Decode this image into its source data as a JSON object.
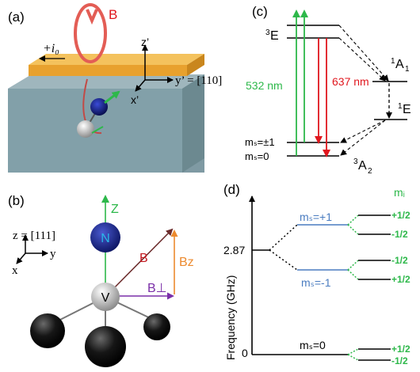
{
  "panel_a": {
    "label": "(a)",
    "field": "B",
    "current": "+i₀",
    "axis_z": "z’",
    "axis_x": "x’",
    "axis_y": "y’ = [110]"
  },
  "panel_b": {
    "label": "(b)",
    "axis_z_label": "Z",
    "atom_n": "N",
    "atom_v": "V",
    "field": "B",
    "field_z": "Bz",
    "field_perp": "B⊥",
    "frame_z": "z = [111]",
    "frame_y": "y",
    "frame_x": "x"
  },
  "panel_c": {
    "label": "(c)",
    "level_3E_sup": "3",
    "level_3E": "E",
    "level_1A1_sup": "1",
    "level_1A1": "A",
    "level_1A1_sub": "1",
    "level_1E_sup": "1",
    "level_1E": "E",
    "level_3A2_sup": "3",
    "level_3A2": "A",
    "level_3A2_sub": "2",
    "ms_pm1": "mₛ=±1",
    "ms_0": "mₛ=0",
    "green_label": "532 nm",
    "red_label": "637 nm",
    "green_color": "#2db84a",
    "red_color": "#e0161d"
  },
  "panel_d": {
    "label": "(d)",
    "y_axis_label": "Frequency (GHz)",
    "y_tick_top": "2.87",
    "y_tick_bottom": "0",
    "ms_plus": "mₛ=+1",
    "ms_minus": "mₛ=-1",
    "ms_zero": "mₛ=0",
    "mi_header": "mᵢ",
    "mi_plus": "+1/2",
    "mi_minus": "-1/2",
    "blue_color": "#4a7cc0",
    "green_color": "#2db84a"
  }
}
